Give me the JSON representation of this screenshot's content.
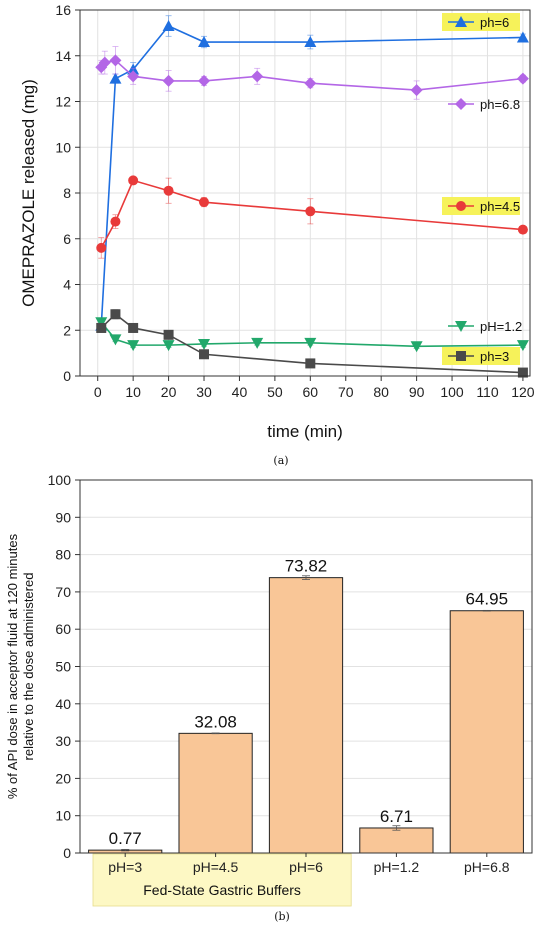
{
  "chart_data": [
    {
      "type": "line",
      "caption": "(a)",
      "xlabel": "time (min)",
      "ylabel": "OMEPRAZOLE released (mg)",
      "xlim": [
        -5,
        122
      ],
      "ylim": [
        0,
        16
      ],
      "xticks": [
        0,
        10,
        20,
        30,
        40,
        50,
        60,
        70,
        80,
        90,
        100,
        110,
        120
      ],
      "yticks": [
        0,
        2,
        4,
        6,
        8,
        10,
        12,
        14,
        16
      ],
      "grid": true,
      "series": [
        {
          "name": "ph=6",
          "color": "#1f6fe0",
          "marker": "triangle-up",
          "highlight": true,
          "x": [
            1,
            5,
            10,
            20,
            30,
            60,
            120
          ],
          "y": [
            2.2,
            13.0,
            13.4,
            15.3,
            14.6,
            14.6,
            14.8
          ],
          "err": [
            0.15,
            0.2,
            0.3,
            0.45,
            0.25,
            0.3,
            0.15
          ]
        },
        {
          "name": "ph=6.8",
          "color": "#b366e6",
          "marker": "diamond",
          "highlight": false,
          "x": [
            1,
            2,
            5,
            10,
            20,
            30,
            45,
            60,
            90,
            120
          ],
          "y": [
            13.5,
            13.7,
            13.8,
            13.1,
            12.9,
            12.9,
            13.1,
            12.8,
            12.5,
            13.0
          ],
          "err": [
            0.3,
            0.5,
            0.6,
            0.35,
            0.45,
            0.2,
            0.35,
            0.2,
            0.4,
            0.15
          ]
        },
        {
          "name": "ph=4.5",
          "color": "#e83a3a",
          "marker": "circle",
          "highlight": true,
          "x": [
            1,
            5,
            10,
            20,
            30,
            60,
            120
          ],
          "y": [
            5.6,
            6.75,
            8.55,
            8.1,
            7.6,
            7.2,
            6.4
          ],
          "err": [
            0.45,
            0.3,
            0.1,
            0.55,
            0.2,
            0.55,
            0.1
          ]
        },
        {
          "name": "pH=1.2",
          "color": "#22a86b",
          "marker": "triangle-down",
          "highlight": false,
          "x": [
            1,
            5,
            10,
            20,
            30,
            45,
            60,
            90,
            120
          ],
          "y": [
            2.35,
            1.6,
            1.35,
            1.35,
            1.4,
            1.45,
            1.45,
            1.3,
            1.35
          ],
          "err": [
            0.1,
            0.1,
            0.1,
            0.1,
            0.1,
            0.1,
            0.1,
            0.1,
            0.1
          ]
        },
        {
          "name": "ph=3",
          "color": "#4a4a4a",
          "marker": "square",
          "highlight": true,
          "x": [
            1,
            5,
            10,
            20,
            30,
            60,
            120
          ],
          "y": [
            2.1,
            2.7,
            2.1,
            1.8,
            0.95,
            0.55,
            0.15
          ],
          "err": [
            0.15,
            0.2,
            0.1,
            0.15,
            0.1,
            0.05,
            0.05
          ]
        }
      ]
    },
    {
      "type": "bar",
      "caption": "(b)",
      "ylabel": [
        "% of API dose in acceptor fluid at 120 minutes",
        "relative to the dose administered"
      ],
      "ylim": [
        0,
        100
      ],
      "yticks": [
        0,
        10,
        20,
        30,
        40,
        50,
        60,
        70,
        80,
        90,
        100
      ],
      "grid": true,
      "bar_color": "#f9c697",
      "categories": [
        "pH=3",
        "pH=4.5",
        "pH=6",
        "pH=1.2",
        "pH=6.8"
      ],
      "values": [
        0.77,
        32.08,
        73.82,
        6.71,
        64.95
      ],
      "labels": [
        "0.77",
        "32.08",
        "73.82",
        "6.71",
        "64.95"
      ],
      "err": [
        0.2,
        0.1,
        0.5,
        0.6,
        0.1
      ],
      "group_label": "Fed-State Gastric Buffers",
      "group_categories": 3,
      "group_color": "#fdf8c4"
    }
  ],
  "highlight_color": "#f6f25a"
}
